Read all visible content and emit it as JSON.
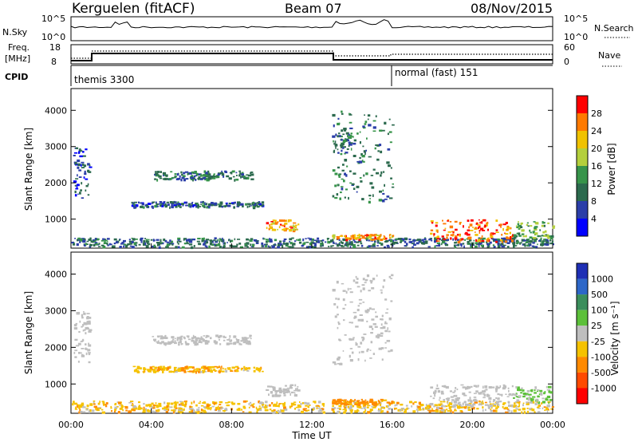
{
  "header": {
    "station": "Kerguelen (fitACF)",
    "beam": "Beam 07",
    "date": "08/Nov/2015"
  },
  "panel_labels": {
    "nsky": "N.Sky",
    "nsearch": "N.Search",
    "freq_line1": "Freq.",
    "freq_line2": "[MHz]",
    "nave": "Nave",
    "cpid": "CPID"
  },
  "axis_tick_labels": {
    "nsky_hi": "10^5",
    "nsky_lo": "10^0",
    "nsearch_hi": "10^5",
    "nsearch_lo": "10^0",
    "freq_hi": "18",
    "freq_lo": "8",
    "nave_hi": "60",
    "nave_lo": "0"
  },
  "cpid_modes": [
    {
      "label": "themis 3300",
      "start_hour": 0
    },
    {
      "label": "normal (fast) 151",
      "start_hour": 16
    }
  ],
  "colors": {
    "ground_scatter": "#bebebe",
    "frame": "#000000"
  },
  "chart_data": [
    {
      "type": "heatmap",
      "name": "power",
      "xlabel": "",
      "ylabel": "Slant Range [km]",
      "xlim": [
        0,
        24
      ],
      "ylim": [
        200,
        4600
      ],
      "yticks": [
        1000,
        2000,
        3000,
        4000
      ],
      "xticks": [
        0,
        4,
        8,
        12,
        16,
        20,
        24
      ],
      "colorbar": {
        "label": "Power [dB]",
        "range": [
          0,
          32
        ],
        "ticks": [
          4,
          8,
          12,
          16,
          20,
          24,
          28
        ],
        "colors": [
          "#0000ff",
          "#2b3ea8",
          "#2c6a4e",
          "#37944a",
          "#b4cf3c",
          "#f0c200",
          "#ff7a00",
          "#ff0000"
        ]
      },
      "features": [
        {
          "hours": [
            0,
            24
          ],
          "range": [
            250,
            500
          ],
          "db": 9
        },
        {
          "hours": [
            0.1,
            0.9
          ],
          "range": [
            1600,
            3000
          ],
          "db": 7
        },
        {
          "hours": [
            3,
            9.5
          ],
          "range": [
            1350,
            1500
          ],
          "db": 8
        },
        {
          "hours": [
            4,
            9
          ],
          "range": [
            2100,
            2350
          ],
          "db": 10
        },
        {
          "hours": [
            9.7,
            11.3
          ],
          "range": [
            700,
            1000
          ],
          "db": 24
        },
        {
          "hours": [
            13,
            16
          ],
          "range": [
            450,
            600
          ],
          "db": 24
        },
        {
          "hours": [
            13,
            16
          ],
          "range": [
            1500,
            4000
          ],
          "db": 11
        },
        {
          "hours": [
            13,
            14
          ],
          "range": [
            2800,
            3400
          ],
          "db": 10
        },
        {
          "hours": [
            17.8,
            22
          ],
          "range": [
            400,
            1000
          ],
          "db": 26
        },
        {
          "hours": [
            22,
            24
          ],
          "range": [
            500,
            950
          ],
          "db": 15
        }
      ]
    },
    {
      "type": "heatmap",
      "name": "velocity",
      "xlabel": "Time UT",
      "ylabel": "Slant Range [km]",
      "xlim": [
        0,
        24
      ],
      "ylim": [
        200,
        4600
      ],
      "yticks": [
        1000,
        2000,
        3000,
        4000
      ],
      "xticks": [
        0,
        4,
        8,
        12,
        16,
        20,
        24
      ],
      "xtick_labels": [
        "00:00",
        "04:00",
        "08:00",
        "12:00",
        "16:00",
        "20:00",
        "00:00"
      ],
      "colorbar": {
        "label": "Velocity [m s⁻¹]",
        "ticks": [
          "1000",
          "500",
          "100",
          "25",
          "-25",
          "-100",
          "-500",
          "-1000"
        ],
        "colors": [
          "#1e2fb5",
          "#2d67c8",
          "#3b8e5c",
          "#5cc03a",
          "#bebebe",
          "#f5c200",
          "#ff8a00",
          "#ff4a00",
          "#ff0000"
        ]
      },
      "features": [
        {
          "hours": [
            0,
            24
          ],
          "range": [
            250,
            550
          ],
          "vel": -60
        },
        {
          "hours": [
            0.1,
            0.9
          ],
          "range": [
            1600,
            3000
          ],
          "vel": 0
        },
        {
          "hours": [
            3,
            9.5
          ],
          "range": [
            1350,
            1500
          ],
          "vel": -80
        },
        {
          "hours": [
            4,
            9
          ],
          "range": [
            2100,
            2350
          ],
          "vel": 0
        },
        {
          "hours": [
            9.7,
            11.3
          ],
          "range": [
            700,
            1000
          ],
          "vel": 0
        },
        {
          "hours": [
            13,
            16
          ],
          "range": [
            450,
            600
          ],
          "vel": -150
        },
        {
          "hours": [
            13,
            16
          ],
          "range": [
            1500,
            4000
          ],
          "vel": 0
        },
        {
          "hours": [
            17.8,
            22
          ],
          "range": [
            400,
            1000
          ],
          "vel": 0
        },
        {
          "hours": [
            22,
            24
          ],
          "range": [
            500,
            950
          ],
          "vel": 40
        }
      ]
    }
  ]
}
